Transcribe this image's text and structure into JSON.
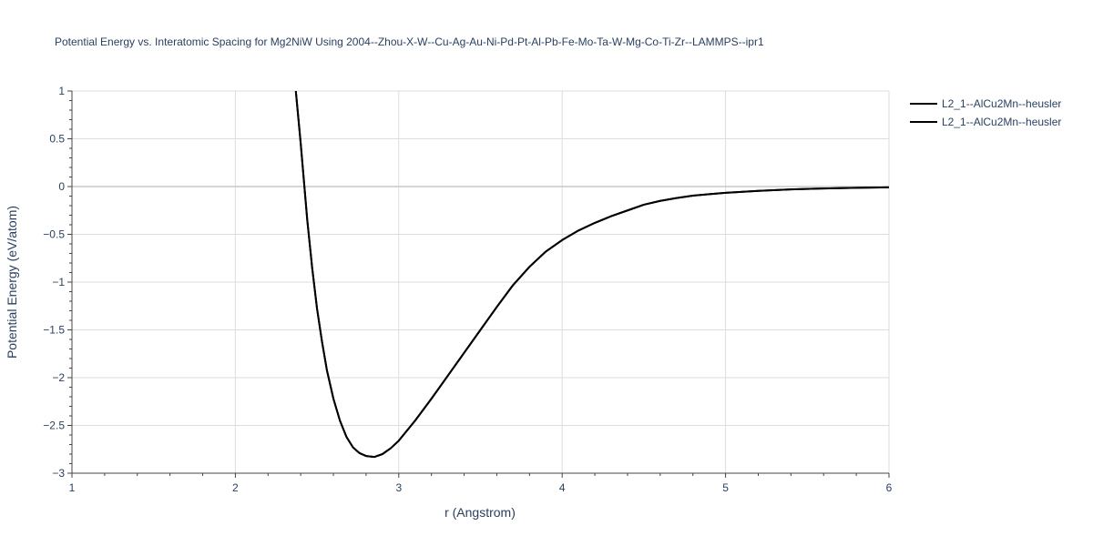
{
  "chart_data": {
    "type": "line",
    "title": "Potential Energy vs. Interatomic Spacing for Mg2NiW Using 2004--Zhou-X-W--Cu-Ag-Au-Ni-Pd-Pt-Al-Pb-Fe-Mo-Ta-W-Mg-Co-Ti-Zr--LAMMPS--ipr1",
    "xlabel": "r (Angstrom)",
    "ylabel": "Potential Energy (eV/atom)",
    "xlim": [
      1,
      6
    ],
    "ylim": [
      -3,
      1
    ],
    "x_ticks": [
      1,
      2,
      3,
      4,
      5,
      6
    ],
    "x_tick_labels": [
      "1",
      "2",
      "3",
      "4",
      "5",
      "6"
    ],
    "y_ticks": [
      1,
      0.5,
      0,
      -0.5,
      -1,
      -1.5,
      -2,
      -2.5,
      -3
    ],
    "y_tick_labels": [
      "1",
      "0.5",
      "0",
      "−0.5",
      "−1",
      "−1.5",
      "−2",
      "−2.5",
      "−3"
    ],
    "grid": true,
    "legend_position": "top-right",
    "series": [
      {
        "name": "L2_1--AlCu2Mn--heusler",
        "color": "#000000",
        "x": [
          2.37,
          2.4,
          2.42,
          2.44,
          2.47,
          2.5,
          2.53,
          2.56,
          2.6,
          2.64,
          2.68,
          2.72,
          2.76,
          2.8,
          2.85,
          2.9,
          2.95,
          3.0,
          3.1,
          3.2,
          3.3,
          3.4,
          3.5,
          3.6,
          3.7,
          3.8,
          3.9,
          4.0,
          4.1,
          4.2,
          4.3,
          4.4,
          4.5,
          4.6,
          4.7,
          4.8,
          4.9,
          5.0,
          5.2,
          5.4,
          5.6,
          5.8,
          6.0
        ],
        "y": [
          1.0,
          0.45,
          0.05,
          -0.35,
          -0.85,
          -1.28,
          -1.62,
          -1.92,
          -2.22,
          -2.45,
          -2.62,
          -2.73,
          -2.79,
          -2.82,
          -2.83,
          -2.8,
          -2.74,
          -2.66,
          -2.45,
          -2.22,
          -1.98,
          -1.74,
          -1.5,
          -1.26,
          -1.03,
          -0.84,
          -0.68,
          -0.56,
          -0.46,
          -0.38,
          -0.31,
          -0.25,
          -0.19,
          -0.15,
          -0.12,
          -0.095,
          -0.08,
          -0.065,
          -0.045,
          -0.03,
          -0.02,
          -0.013,
          -0.008
        ]
      },
      {
        "name": "L2_1--AlCu2Mn--heusler",
        "color": "#000000",
        "x": [
          2.37,
          2.4,
          2.42,
          2.44,
          2.47,
          2.5,
          2.53,
          2.56,
          2.6,
          2.64,
          2.68,
          2.72,
          2.76,
          2.8,
          2.85,
          2.9,
          2.95,
          3.0,
          3.1,
          3.2,
          3.3,
          3.4,
          3.5,
          3.6,
          3.7,
          3.8,
          3.9,
          4.0,
          4.1,
          4.2,
          4.3,
          4.4,
          4.5,
          4.6,
          4.7,
          4.8,
          4.9,
          5.0,
          5.2,
          5.4,
          5.6,
          5.8,
          6.0
        ],
        "y": [
          1.0,
          0.45,
          0.05,
          -0.35,
          -0.85,
          -1.28,
          -1.62,
          -1.92,
          -2.22,
          -2.45,
          -2.62,
          -2.73,
          -2.79,
          -2.82,
          -2.83,
          -2.8,
          -2.74,
          -2.66,
          -2.45,
          -2.22,
          -1.98,
          -1.74,
          -1.5,
          -1.26,
          -1.03,
          -0.84,
          -0.68,
          -0.56,
          -0.46,
          -0.38,
          -0.31,
          -0.25,
          -0.19,
          -0.15,
          -0.12,
          -0.095,
          -0.08,
          -0.065,
          -0.045,
          -0.03,
          -0.02,
          -0.013,
          -0.008
        ]
      }
    ]
  }
}
